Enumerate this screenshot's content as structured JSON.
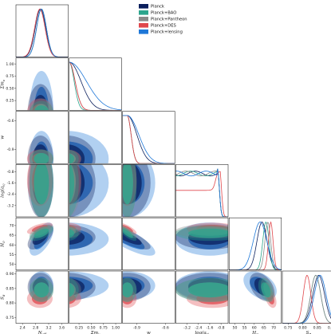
{
  "chart_data": {
    "type": "corner",
    "title": "",
    "parameters": [
      {
        "key": "neff",
        "label": "N_eff",
        "range": [
          2.2,
          3.8
        ],
        "ticks": [
          "2.4",
          "2.8",
          "3.2",
          "3.6"
        ],
        "tick_values": [
          2.4,
          2.8,
          3.2,
          3.6
        ]
      },
      {
        "key": "mnu",
        "label": "Σm_ν",
        "range": [
          0.05,
          1.12
        ],
        "ticks": [
          "0.25",
          "0.50",
          "0.75",
          "1.00"
        ],
        "tick_values": [
          0.25,
          0.5,
          0.75,
          1.0
        ]
      },
      {
        "key": "w",
        "label": "w",
        "range": [
          -1.05,
          -0.5
        ],
        "ticks": [
          "-0.9",
          "-0.6"
        ],
        "tick_values": [
          -0.9,
          -0.6
        ]
      },
      {
        "key": "loga",
        "label": "log(a_t)",
        "range": [
          -4.0,
          -0.3
        ],
        "ticks": [
          "-3.2",
          "-2.4",
          "-1.6",
          "-0.8"
        ],
        "tick_values": [
          -3.2,
          -2.4,
          -1.6,
          -0.8
        ]
      },
      {
        "key": "h0",
        "label": "H_0",
        "range": [
          47,
          74
        ],
        "ticks": [
          "50",
          "55",
          "60",
          "65",
          "70"
        ],
        "tick_values": [
          50,
          55,
          60,
          65,
          70
        ]
      },
      {
        "key": "s8",
        "label": "S_8",
        "range": [
          0.73,
          0.91
        ],
        "ticks": [
          "0.75",
          "0.80",
          "0.85",
          "0.90"
        ],
        "tick_values": [
          0.75,
          0.8,
          0.85,
          0.9
        ]
      }
    ],
    "y_tick_labels": {
      "mnu": {
        "ticks": [
          "0.25",
          "0.50",
          "0.75",
          "1.00"
        ],
        "values": [
          0.25,
          0.5,
          0.75,
          1.0
        ]
      },
      "w": {
        "ticks": [
          "-0.9",
          "-0.6"
        ],
        "values": [
          -0.9,
          -0.6
        ]
      },
      "loga": {
        "ticks": [
          "-3.2",
          "-2.4",
          "-1.6",
          "-0.8"
        ],
        "values": [
          -3.2,
          -2.4,
          -1.6,
          -0.8
        ]
      },
      "h0": {
        "ticks": [
          "50",
          "55",
          "60",
          "65",
          "70"
        ],
        "values": [
          50,
          55,
          60,
          65,
          70
        ]
      },
      "s8": {
        "ticks": [
          "0.75",
          "0.80",
          "0.85",
          "0.90"
        ],
        "values": [
          0.75,
          0.8,
          0.85,
          0.9
        ]
      }
    },
    "series": [
      {
        "name": "Planck",
        "color": "#0b1f5c",
        "mean": {
          "neff": 2.95,
          "mnu": 0.0,
          "w": -1.0,
          "loga": -1.6,
          "h0": 64.0,
          "s8": 0.855
        },
        "sigma": {
          "neff": 0.16,
          "mnu": 0.24,
          "w": 0.1,
          "loga": 1.0,
          "h0": 2.6,
          "s8": 0.02
        }
      },
      {
        "name": "Planck+BAO",
        "color": "#2ca58d",
        "mean": {
          "neff": 2.98,
          "mnu": 0.0,
          "w": -1.0,
          "loga": -1.6,
          "h0": 66.0,
          "s8": 0.845
        },
        "sigma": {
          "neff": 0.15,
          "mnu": 0.1,
          "w": 0.04,
          "loga": 1.0,
          "h0": 1.6,
          "s8": 0.017
        }
      },
      {
        "name": "Planck+Pantheon",
        "color": "#8a8a8a",
        "mean": {
          "neff": 2.98,
          "mnu": 0.0,
          "w": -1.0,
          "loga": -1.6,
          "h0": 67.0,
          "s8": 0.845
        },
        "sigma": {
          "neff": 0.15,
          "mnu": 0.12,
          "w": 0.04,
          "loga": 1.0,
          "h0": 1.5,
          "s8": 0.017
        }
      },
      {
        "name": "Planck+DES",
        "color": "#e0474c",
        "mean": {
          "neff": 2.93,
          "mnu": 0.0,
          "w": -1.0,
          "loga": -1.4,
          "h0": 68.5,
          "s8": 0.815
        },
        "sigma": {
          "neff": 0.16,
          "mnu": 0.12,
          "w": 0.04,
          "loga": 0.75,
          "h0": 1.2,
          "s8": 0.013
        }
      },
      {
        "name": "Planck+lensing",
        "color": "#1f78d8",
        "mean": {
          "neff": 2.98,
          "mnu": 0.0,
          "w": -1.0,
          "loga": -1.6,
          "h0": 63.0,
          "s8": 0.86
        },
        "sigma": {
          "neff": 0.15,
          "mnu": 0.35,
          "w": 0.12,
          "loga": 1.0,
          "h0": 3.5,
          "s8": 0.02
        }
      }
    ],
    "legend": {
      "placement": "top-right"
    },
    "grid": false
  }
}
